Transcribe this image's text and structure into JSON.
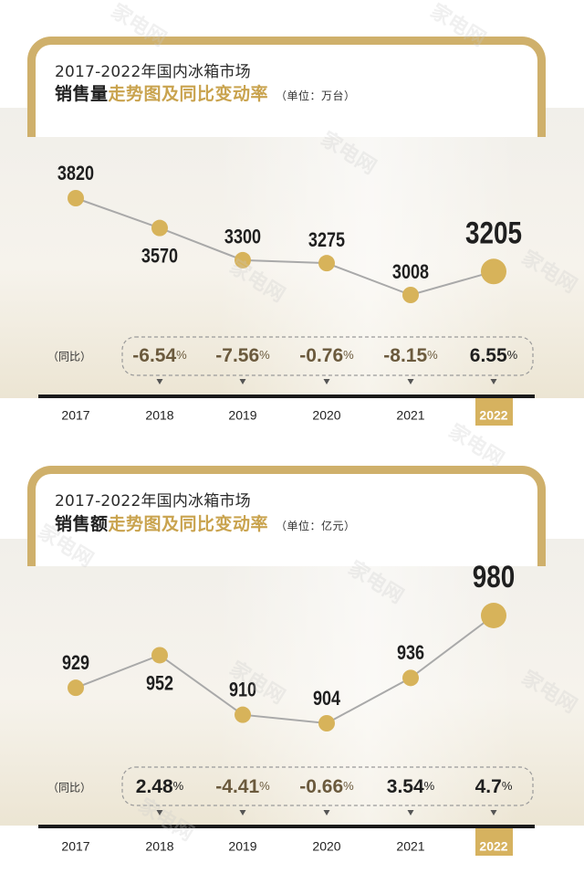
{
  "colors": {
    "gold": "#cfb06b",
    "point": "#d7b35a",
    "line": "#a9a9a9",
    "growth_text": "#6b5a3d",
    "text_dark": "#1f1f1f",
    "highlight_year_bg": "#d6b25f"
  },
  "watermark": "家电网",
  "chart_data": [
    {
      "type": "line",
      "heading": "2017-2022年国内冰箱市场",
      "title_dark": "销售量",
      "title_gold": "走势图及同比变动率",
      "unit": "（单位：万台）",
      "growth_label": "（同比）",
      "categories": [
        "2017",
        "2018",
        "2019",
        "2020",
        "2021",
        "2022"
      ],
      "values": [
        3820,
        3570,
        3300,
        3275,
        3008,
        3205
      ],
      "value_labels": [
        "3820",
        "3570",
        "3300",
        "3275",
        "3008",
        "3205"
      ],
      "growth": [
        "",
        "-6.54",
        "-7.56",
        "-0.76",
        "-8.15",
        "6.55"
      ],
      "growth_unit": "%",
      "highlight": "2022",
      "ylim": [
        2900,
        3900
      ]
    },
    {
      "type": "line",
      "heading": "2017-2022年国内冰箱市场",
      "title_dark": "销售额",
      "title_gold": "走势图及同比变动率",
      "unit": "（单位：亿元）",
      "growth_label": "（同比）",
      "categories": [
        "2017",
        "2018",
        "2019",
        "2020",
        "2021",
        "2022"
      ],
      "values": [
        929,
        952,
        910,
        904,
        936,
        980
      ],
      "value_labels": [
        "929",
        "952",
        "910",
        "904",
        "936",
        "980"
      ],
      "growth": [
        "",
        "2.48",
        "-4.41",
        "-0.66",
        "3.54",
        "4.7"
      ],
      "growth_unit": "%",
      "highlight": "2022",
      "ylim": [
        890,
        990
      ]
    }
  ]
}
